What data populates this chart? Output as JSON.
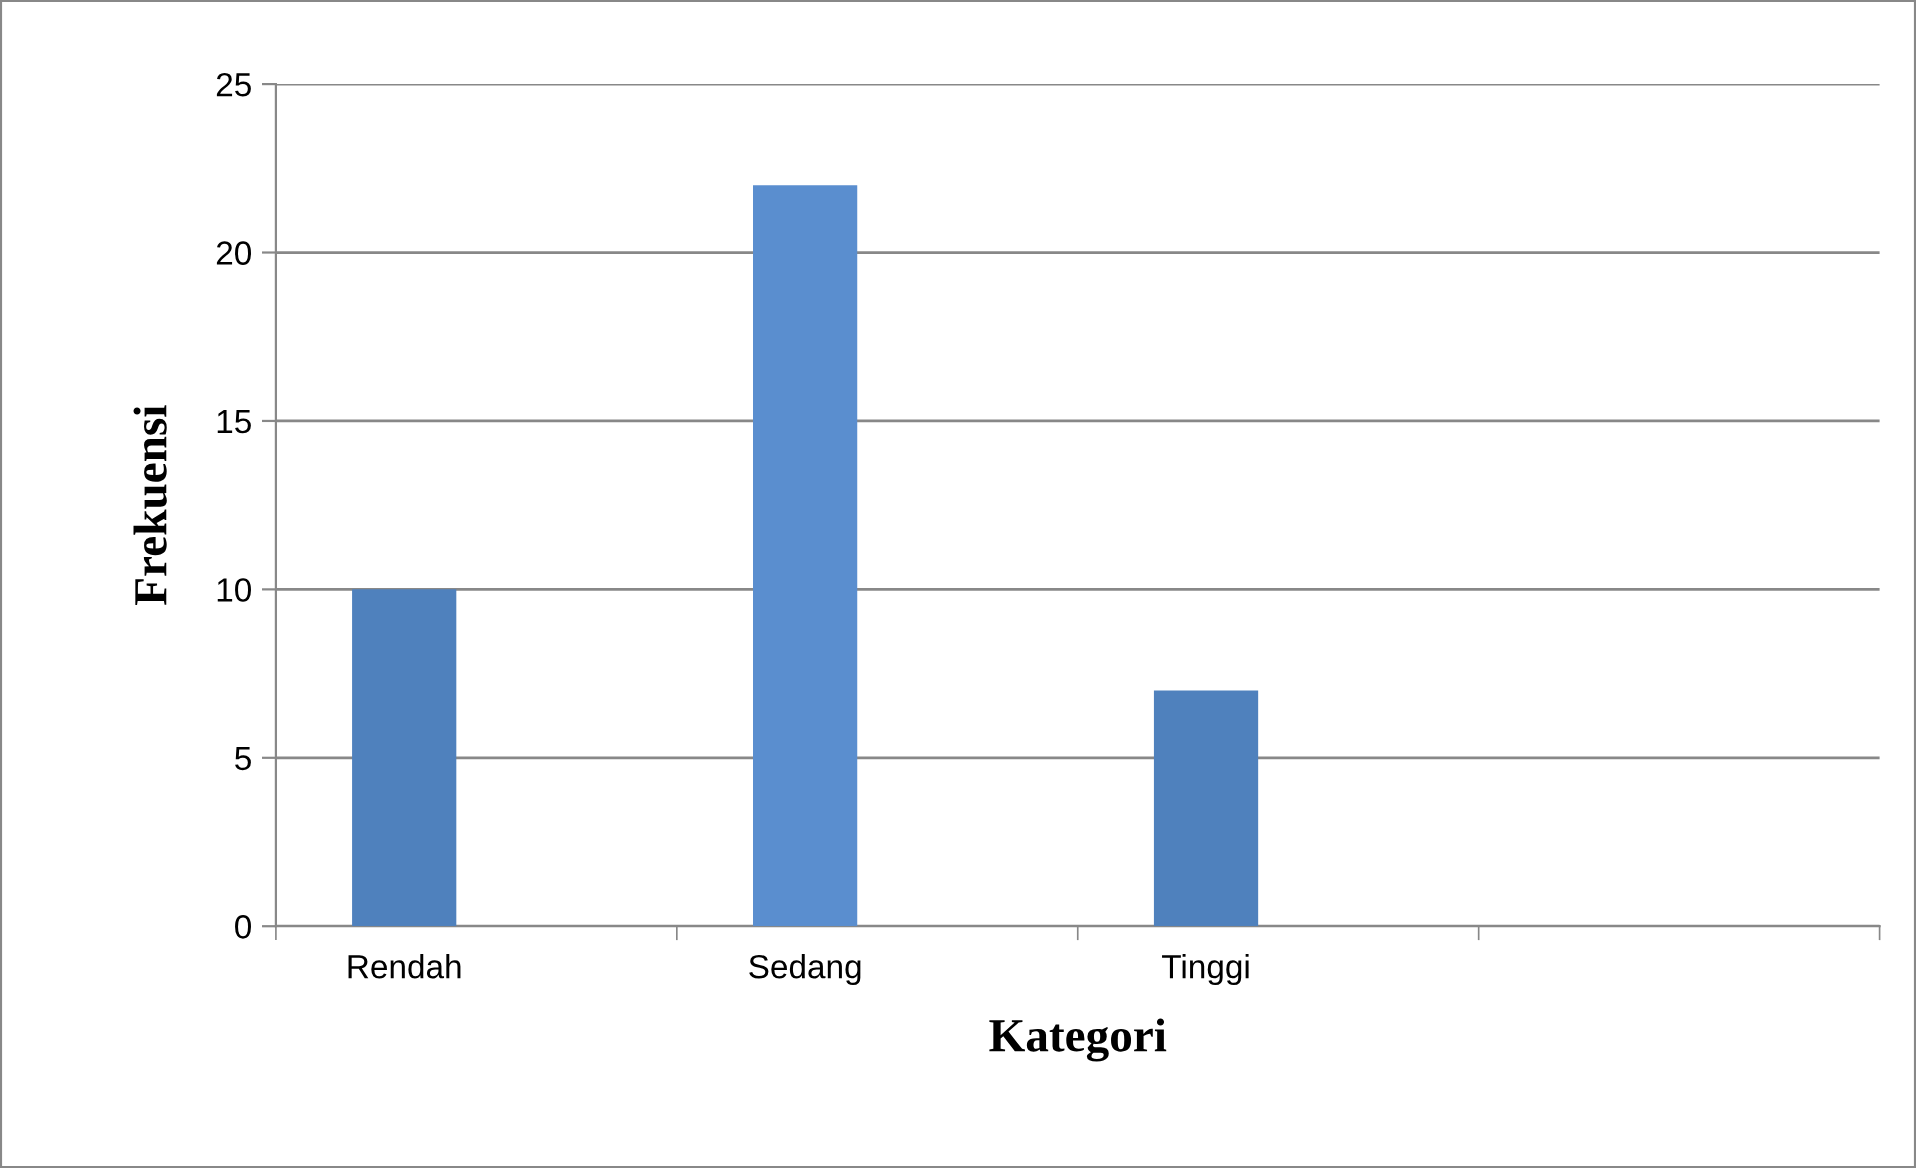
{
  "chart_data": {
    "type": "bar",
    "xlabel": "Kategori",
    "ylabel": "Frekuensi",
    "categories": [
      "Rendah",
      "Sedang",
      "Tinggi",
      null
    ],
    "values": [
      10,
      22,
      7,
      null
    ],
    "colors": [
      "#4f81bd",
      "#5a8ecf",
      "#4f81bd",
      "#4f81bd"
    ],
    "ylim": [
      0,
      25
    ],
    "yticks": [
      0,
      5,
      10,
      15,
      20,
      25
    ],
    "grid": "y",
    "legend": false
  }
}
